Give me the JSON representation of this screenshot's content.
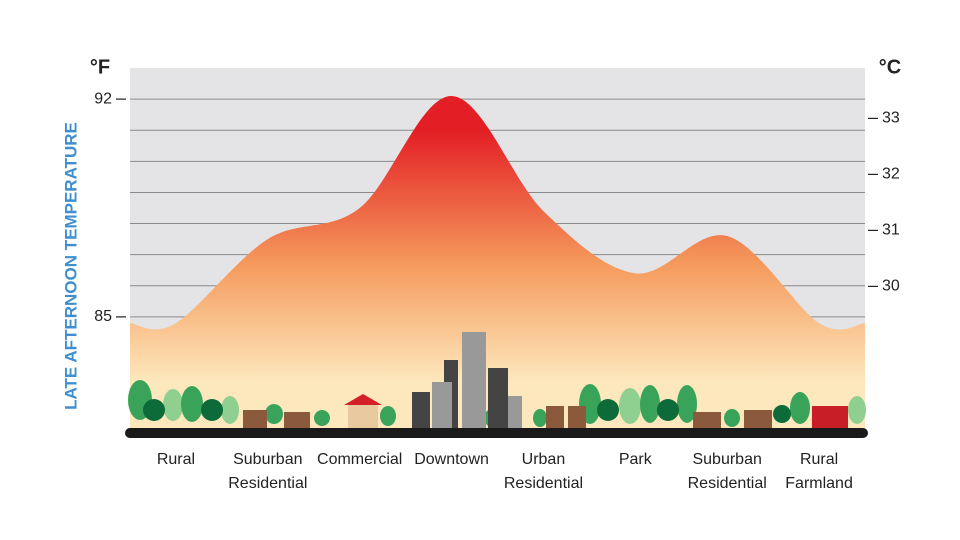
{
  "chart_data": {
    "type": "area",
    "y_axis_label": "LATE AFTERNOON TEMPERATURE",
    "y_unit": "°F",
    "y2_unit": "°C",
    "categories": [
      "Rural",
      "Suburban Residential",
      "Commercial",
      "Downtown",
      "Urban Residential",
      "Park",
      "Suburban Residential",
      "Rural Farmland"
    ],
    "values": [
      84.8,
      87.5,
      88.5,
      92.1,
      88.4,
      86.4,
      87.6,
      84.8
    ],
    "gradient": [
      "#e31e24",
      "#f59a5c",
      "#fde8bd"
    ],
    "ylim": [
      81.3,
      93
    ],
    "yticks": [
      85,
      92
    ],
    "ygrid": [
      85,
      86,
      87,
      88,
      89,
      90,
      91,
      92
    ],
    "y2lim": [
      27.4,
      33.9
    ],
    "y2ticks": [
      30,
      31,
      32,
      33
    ],
    "grid": true
  }
}
